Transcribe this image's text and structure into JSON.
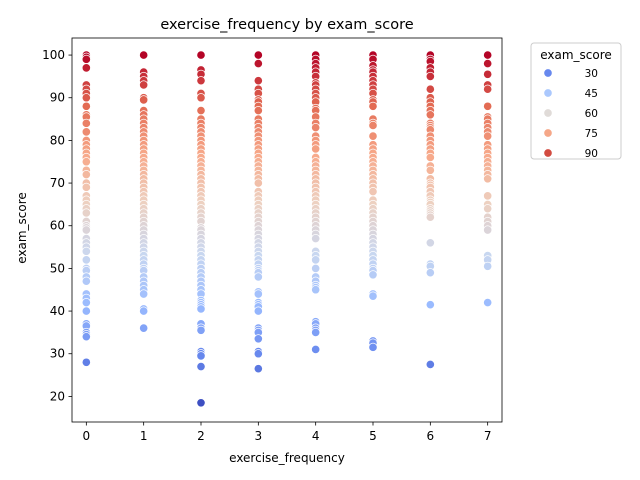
{
  "chart_data": {
    "type": "scatter",
    "title": "exercise_frequency by exam_score",
    "xlabel": "exercise_frequency",
    "ylabel": "exam_score",
    "xlim": [
      -0.25,
      7.25
    ],
    "ylim": [
      14.0,
      104.0
    ],
    "xticks": [
      0,
      1,
      2,
      3,
      4,
      5,
      6,
      7
    ],
    "yticks": [
      20,
      30,
      40,
      50,
      60,
      70,
      80,
      90,
      100
    ],
    "grid": false,
    "hue": "exam_score",
    "legend": {
      "title": "exam_score",
      "placement": "upper-right-outside",
      "entries": [
        {
          "label": "30",
          "color": "#6788ee"
        },
        {
          "label": "45",
          "color": "#abc8fd"
        },
        {
          "label": "60",
          "color": "#e0dbd8"
        },
        {
          "label": "75",
          "color": "#f5a788"
        },
        {
          "label": "90",
          "color": "#d24b40"
        }
      ]
    },
    "colormap": [
      "#3b4cc0",
      "#6788ee",
      "#9abbff",
      "#c9d7f0",
      "#edd1c2",
      "#f7a889",
      "#e26952",
      "#b40426"
    ],
    "series": [
      {
        "x": 0,
        "y": [
          100,
          99.5,
          99,
          97,
          93,
          92,
          91,
          90,
          88,
          86,
          85.5,
          84,
          82,
          80,
          79,
          78,
          77,
          76,
          75,
          73,
          72,
          70,
          69,
          67,
          66,
          65,
          64,
          63,
          61,
          60,
          59.5,
          59,
          57,
          56,
          55,
          54,
          52,
          50,
          49.5,
          48,
          47,
          44,
          43,
          42,
          40,
          37,
          36.5,
          35,
          34.5,
          34,
          28
        ]
      },
      {
        "x": 1,
        "y": [
          100,
          96,
          95,
          94,
          93,
          90,
          89.5,
          87,
          86,
          85,
          84,
          83,
          82,
          81,
          80,
          79,
          78,
          77,
          76,
          75,
          74,
          73,
          72,
          71,
          70,
          69,
          68,
          67,
          66,
          65,
          64,
          63,
          62,
          61,
          60,
          59,
          58,
          57,
          56,
          55,
          54,
          53,
          52,
          51,
          50,
          49.5,
          48,
          47,
          46,
          45,
          44,
          40.5,
          40,
          36
        ]
      },
      {
        "x": 2,
        "y": [
          100,
          96.5,
          95.5,
          94,
          91,
          90,
          87,
          85,
          84,
          83,
          82,
          81,
          80,
          79,
          78,
          77,
          76,
          75,
          74,
          73,
          72,
          71,
          70,
          69,
          68,
          67,
          66,
          65,
          64,
          63,
          62,
          61,
          59.5,
          59,
          58,
          57,
          56,
          55,
          54,
          53,
          52,
          51,
          50,
          49,
          48,
          47,
          46,
          45,
          44,
          42.5,
          42,
          41.5,
          41,
          40.5,
          37,
          36,
          35.5,
          30.5,
          30,
          29.5,
          27,
          18.5
        ]
      },
      {
        "x": 3,
        "y": [
          100,
          98,
          94,
          92,
          91,
          89.5,
          89,
          88,
          87,
          85,
          84,
          83,
          82,
          81,
          80,
          79,
          78,
          77,
          76,
          75,
          74,
          73,
          72,
          71,
          70,
          68,
          67,
          66,
          65,
          64,
          63,
          62,
          61,
          60,
          59,
          58,
          57,
          56,
          55,
          54,
          53,
          52,
          51,
          50,
          49.5,
          49,
          48,
          44.5,
          44,
          42,
          41.5,
          41,
          40,
          36,
          35.5,
          35,
          33.5,
          30.5,
          30,
          26.5
        ]
      },
      {
        "x": 4,
        "y": [
          100,
          99,
          98,
          97,
          96,
          95,
          93.5,
          93,
          92,
          91,
          90,
          89,
          87.5,
          87,
          85.5,
          84,
          83,
          81,
          80,
          79,
          78,
          76,
          75,
          74,
          73,
          72,
          71,
          70,
          69,
          68,
          67,
          66,
          65,
          64,
          63,
          62,
          61,
          60,
          59,
          58,
          57,
          54,
          53,
          52,
          50,
          48,
          47,
          46,
          45.5,
          45,
          37.5,
          37,
          36,
          35.5,
          35,
          31
        ]
      },
      {
        "x": 5,
        "y": [
          100,
          99,
          97.5,
          96.5,
          96,
          95,
          94,
          93,
          92,
          91,
          89.5,
          89,
          88,
          85,
          84,
          83.5,
          81,
          79,
          78,
          77,
          76,
          75,
          74,
          73,
          72,
          71,
          70,
          69,
          68,
          66,
          65,
          64,
          63,
          62,
          61,
          60,
          59,
          58,
          57,
          56,
          55,
          54,
          53,
          52,
          51,
          50,
          49.5,
          48.5,
          44,
          43.5,
          33,
          32.5,
          31.5
        ]
      },
      {
        "x": 6,
        "y": [
          100,
          99,
          98.5,
          97,
          96,
          95,
          92,
          90,
          89,
          88,
          87,
          86,
          84,
          83.5,
          83,
          82.5,
          81,
          80,
          79,
          78,
          77,
          76,
          74,
          73,
          71,
          70,
          69.5,
          69,
          68,
          67,
          66,
          65.5,
          65,
          64,
          63.5,
          63,
          62.5,
          62,
          56,
          51,
          50.5,
          49,
          41.5,
          27.5
        ]
      },
      {
        "x": 7,
        "y": [
          100,
          98,
          95.5,
          93,
          92,
          88,
          85.5,
          85,
          84,
          83,
          82,
          81,
          79,
          78,
          77,
          76,
          75,
          74,
          73,
          72,
          71,
          67,
          65,
          64,
          62,
          61,
          60,
          59,
          53,
          52,
          50.5,
          42
        ]
      }
    ]
  }
}
